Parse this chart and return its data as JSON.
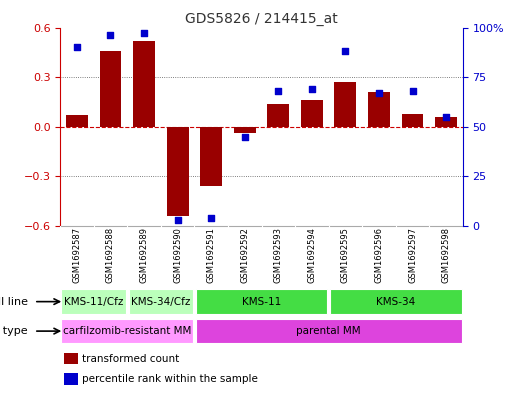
{
  "title": "GDS5826 / 214415_at",
  "samples": [
    "GSM1692587",
    "GSM1692588",
    "GSM1692589",
    "GSM1692590",
    "GSM1692591",
    "GSM1692592",
    "GSM1692593",
    "GSM1692594",
    "GSM1692595",
    "GSM1692596",
    "GSM1692597",
    "GSM1692598"
  ],
  "bar_values": [
    0.07,
    0.46,
    0.52,
    -0.54,
    -0.36,
    -0.04,
    0.14,
    0.16,
    0.27,
    0.21,
    0.08,
    0.06
  ],
  "dot_values": [
    90,
    96,
    97,
    3,
    4,
    45,
    68,
    69,
    88,
    67,
    68,
    55
  ],
  "ylim_left": [
    -0.6,
    0.6
  ],
  "ylim_right": [
    0,
    100
  ],
  "yticks_left": [
    -0.6,
    -0.3,
    0.0,
    0.3,
    0.6
  ],
  "yticks_right": [
    0,
    25,
    50,
    75,
    100
  ],
  "bar_color": "#990000",
  "dot_color": "#0000cc",
  "zero_line_color": "#cc0000",
  "grid_color": "#000000",
  "cell_lines": [
    {
      "label": "KMS-11/Cfz",
      "start": 0,
      "end": 2,
      "color": "#bbffbb"
    },
    {
      "label": "KMS-34/Cfz",
      "start": 2,
      "end": 4,
      "color": "#bbffbb"
    },
    {
      "label": "KMS-11",
      "start": 4,
      "end": 8,
      "color": "#44dd44"
    },
    {
      "label": "KMS-34",
      "start": 8,
      "end": 12,
      "color": "#44dd44"
    }
  ],
  "cell_types": [
    {
      "label": "carfilzomib-resistant MM",
      "start": 0,
      "end": 4,
      "color": "#ff99ff"
    },
    {
      "label": "parental MM",
      "start": 4,
      "end": 12,
      "color": "#dd44dd"
    }
  ],
  "bg_color": "#ffffff",
  "tick_label_color_left": "#cc0000",
  "tick_label_color_right": "#0000cc",
  "sample_bg": "#cccccc",
  "legend_items": [
    {
      "label": "transformed count",
      "color": "#990000"
    },
    {
      "label": "percentile rank within the sample",
      "color": "#0000cc"
    }
  ]
}
